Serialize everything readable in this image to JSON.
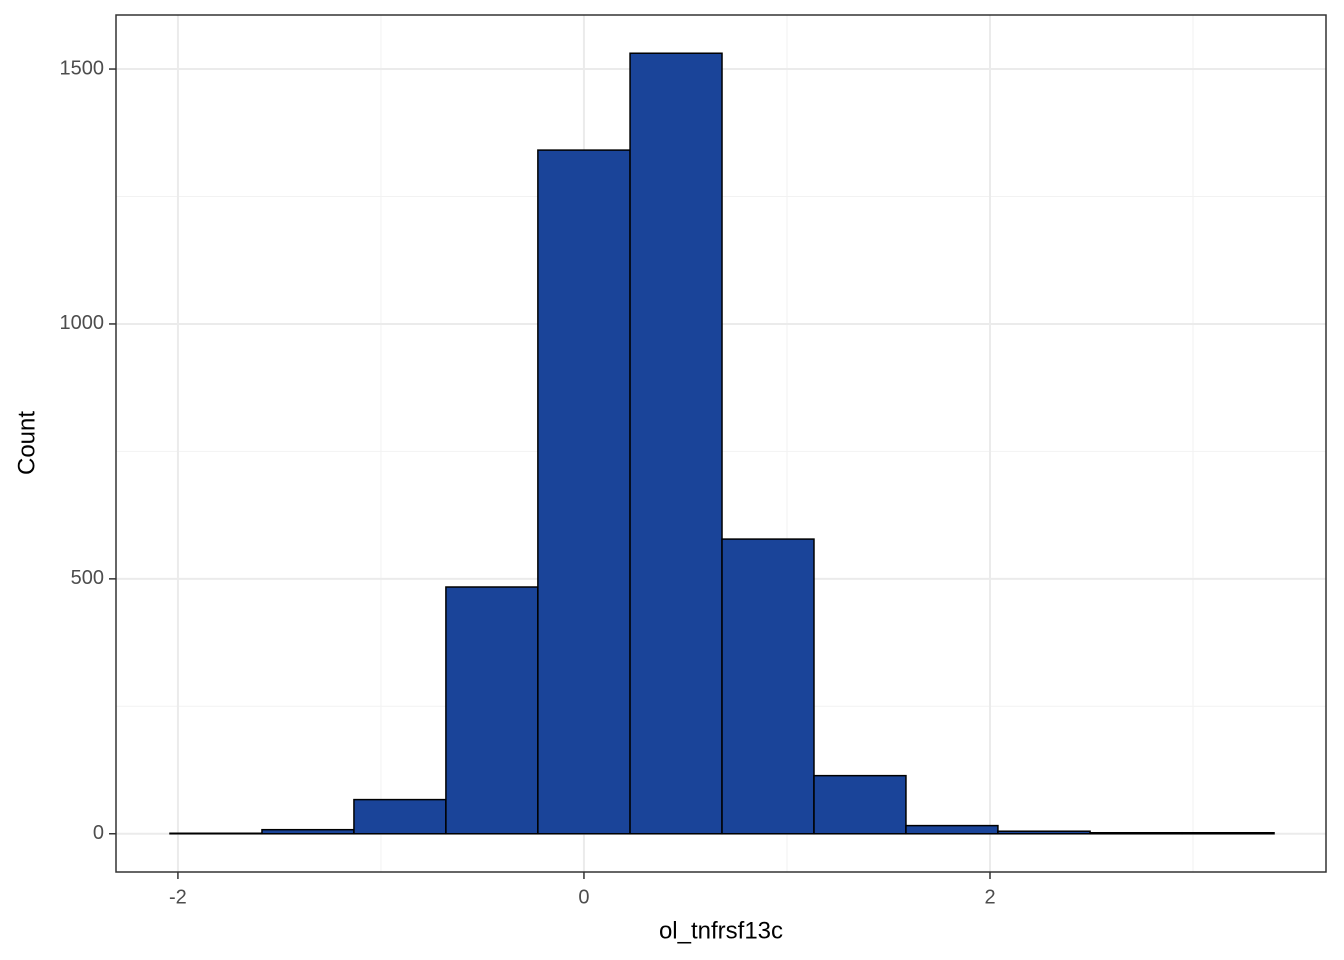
{
  "chart_data": {
    "type": "histogram",
    "x_label": "ol_tnfrsf13c",
    "y_label": "Count",
    "bins": [
      -2.039,
      -1.586,
      -1.133,
      -0.68,
      -0.227,
      0.227,
      0.68,
      1.133,
      1.586,
      2.039,
      2.493,
      2.946,
      3.399
    ],
    "values": [
      1,
      8,
      67,
      484,
      1341,
      1531,
      578,
      114,
      16,
      5,
      2,
      2
    ],
    "color": "#1a4499",
    "edgecolor": "#000000",
    "xlim": [
      -2.305,
      3.655
    ],
    "ylim": [
      -75,
      1606
    ],
    "xticks": [
      -2,
      0,
      2
    ],
    "yticks": [
      0,
      500,
      1000,
      1500
    ],
    "minor_xticks": [
      -1,
      1,
      3
    ],
    "minor_yticks": [
      250,
      750,
      1250
    ],
    "grid": true
  }
}
